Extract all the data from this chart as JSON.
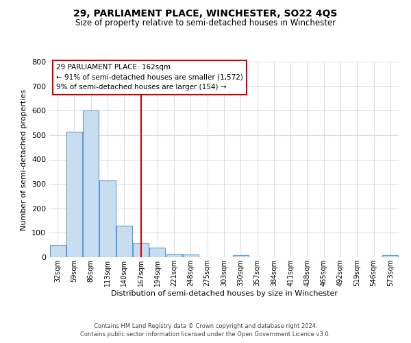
{
  "title": "29, PARLIAMENT PLACE, WINCHESTER, SO22 4QS",
  "subtitle": "Size of property relative to semi-detached houses in Winchester",
  "xlabel": "Distribution of semi-detached houses by size in Winchester",
  "ylabel": "Number of semi-detached properties",
  "bin_labels": [
    "32sqm",
    "59sqm",
    "86sqm",
    "113sqm",
    "140sqm",
    "167sqm",
    "194sqm",
    "221sqm",
    "248sqm",
    "275sqm",
    "303sqm",
    "330sqm",
    "357sqm",
    "384sqm",
    "411sqm",
    "438sqm",
    "465sqm",
    "492sqm",
    "519sqm",
    "546sqm",
    "573sqm"
  ],
  "bar_values": [
    50,
    515,
    600,
    315,
    130,
    58,
    40,
    14,
    10,
    0,
    0,
    8,
    0,
    0,
    0,
    0,
    0,
    0,
    0,
    0,
    8
  ],
  "bar_color": "#c9ddf0",
  "bar_edge_color": "#5b9bd5",
  "vline_x_index": 5,
  "vline_color": "#cc0000",
  "ylim": [
    0,
    800
  ],
  "yticks": [
    0,
    100,
    200,
    300,
    400,
    500,
    600,
    700,
    800
  ],
  "annotation_title": "29 PARLIAMENT PLACE: 162sqm",
  "annotation_line1": "← 91% of semi-detached houses are smaller (1,572)",
  "annotation_line2": "9% of semi-detached houses are larger (154) →",
  "annotation_box_color": "#ffffff",
  "annotation_box_edge": "#cc0000",
  "footer_line1": "Contains HM Land Registry data © Crown copyright and database right 2024.",
  "footer_line2": "Contains public sector information licensed under the Open Government Licence v3.0.",
  "background_color": "#ffffff",
  "grid_color": "#d0dce8"
}
